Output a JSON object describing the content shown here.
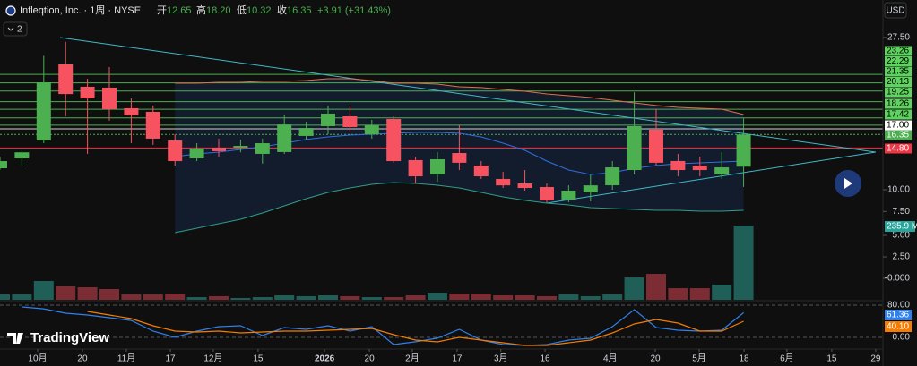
{
  "chart_data": {
    "type": "candlestick",
    "header": {
      "symbol": "Infleqtion, Inc. · 1周 · NYSE",
      "open_label": "开",
      "open": "12.65",
      "high_label": "高",
      "high": "18.20",
      "low_label": "低",
      "low": "10.32",
      "close_label": "收",
      "close": "16.35",
      "change": "+3.91 (+31.43%)"
    },
    "currency": "USD",
    "indicator_count": "2",
    "logo": "TradingView",
    "xlim": [
      0,
      40.37
    ],
    "xticks": [
      {
        "value": 1.72,
        "label": "10月"
      },
      {
        "value": 3.77,
        "label": "20"
      },
      {
        "value": 5.78,
        "label": "11月"
      },
      {
        "value": 7.79,
        "label": "17"
      },
      {
        "value": 9.75,
        "label": "12月"
      },
      {
        "value": 11.8,
        "label": "15"
      },
      {
        "value": 14.84,
        "label": "2026"
      },
      {
        "value": 16.89,
        "label": "20"
      },
      {
        "value": 18.85,
        "label": "2月"
      },
      {
        "value": 20.9,
        "label": "17"
      },
      {
        "value": 22.9,
        "label": "3月"
      },
      {
        "value": 24.92,
        "label": "16"
      },
      {
        "value": 27.9,
        "label": "4月"
      },
      {
        "value": 29.96,
        "label": "20"
      },
      {
        "value": 31.97,
        "label": "5月"
      },
      {
        "value": 34.02,
        "label": "18"
      },
      {
        "value": 35.98,
        "label": "6月"
      },
      {
        "value": 38.03,
        "label": "15"
      },
      {
        "value": 40.04,
        "label": "29"
      }
    ],
    "ylim": [
      -2.66,
      31.82
    ],
    "yticks": [
      {
        "value": 27.5,
        "label": "27.50"
      },
      {
        "value": 10,
        "label": "10.00"
      },
      {
        "value": 7.5,
        "label": "7.50"
      }
    ],
    "up_color": "#4caf50",
    "down_color": "#f7525f",
    "open": [
      12.47,
      13.6,
      15.66,
      24.41,
      21.84,
      21.74,
      19.37,
      18.96,
      15.66,
      13.6,
      14.84,
      14.84,
      14.12,
      14.33,
      16.18,
      17.31,
      18.44,
      16.38,
      18.13,
      13.4,
      11.75,
      14.22,
      12.78,
      11.24,
      10.72,
      10.31,
      8.86,
      9.7,
      10.51,
      12.26,
      16.9,
      13.3,
      12.78,
      11.75,
      12.65
    ],
    "high": [
      13.8,
      14.5,
      25.4,
      27.0,
      22.76,
      24.1,
      20.5,
      19.68,
      16.38,
      15.35,
      15.87,
      15.77,
      15.87,
      18.65,
      17.82,
      19.68,
      19.68,
      18.03,
      18.44,
      13.8,
      14.3,
      17.41,
      13.3,
      12.06,
      12.26,
      10.72,
      10.5,
      11.75,
      13.3,
      21.2,
      19.26,
      14.12,
      13.8,
      14.3,
      18.2
    ],
    "low": [
      12.3,
      12.8,
      15.35,
      18.44,
      14.12,
      17.93,
      15.35,
      15.15,
      12.78,
      13.29,
      13.81,
      14.3,
      13.0,
      14.12,
      15.77,
      16.38,
      16.6,
      15.87,
      13.1,
      10.7,
      10.9,
      12.26,
      11.24,
      10.2,
      9.9,
      8.46,
      8.56,
      8.66,
      10.0,
      11.75,
      12.78,
      11.54,
      11.54,
      11.24,
      10.32
    ],
    "close": [
      13.29,
      14.3,
      22.35,
      21.0,
      20.5,
      19.26,
      18.54,
      15.87,
      13.29,
      14.74,
      14.43,
      15.04,
      15.35,
      17.5,
      17.1,
      18.75,
      17.2,
      17.41,
      13.29,
      11.54,
      13.5,
      13.1,
      11.54,
      10.5,
      10.2,
      8.76,
      9.9,
      10.5,
      12.57,
      17.31,
      13.1,
      12.26,
      12.26,
      12.57,
      16.35
    ],
    "bands": [
      {
        "color": "#e0704a",
        "values": [
          null,
          null,
          null,
          null,
          null,
          null,
          null,
          null,
          22.25,
          22.25,
          22.35,
          22.35,
          22.46,
          22.46,
          22.56,
          22.76,
          22.76,
          22.56,
          22.25,
          22.25,
          22.15,
          21.84,
          21.74,
          21.53,
          21.32,
          21.01,
          20.81,
          20.6,
          20.29,
          19.98,
          19.68,
          19.47,
          19.37,
          19.26,
          18.65
        ]
      },
      {
        "color": "#2f6fe0",
        "values": [
          null,
          null,
          null,
          null,
          null,
          null,
          null,
          null,
          13.81,
          14.12,
          14.32,
          14.63,
          14.94,
          15.35,
          15.77,
          16.07,
          16.28,
          16.38,
          16.49,
          16.59,
          16.59,
          16.49,
          16.07,
          15.35,
          14.53,
          13.29,
          12.26,
          11.75,
          11.96,
          12.47,
          12.78,
          12.99,
          13.09,
          13.19,
          13.29
        ]
      },
      {
        "color": "#2e9e8a",
        "values": [
          null,
          null,
          null,
          null,
          null,
          null,
          null,
          null,
          5.06,
          5.57,
          6.09,
          6.6,
          7.32,
          8.15,
          8.97,
          9.69,
          10.21,
          10.62,
          10.82,
          10.72,
          10.51,
          10.21,
          9.69,
          9.18,
          8.77,
          8.46,
          8.25,
          7.94,
          7.84,
          7.74,
          7.63,
          7.63,
          7.53,
          7.53,
          7.63
        ]
      }
    ],
    "band_fill": "#131c2c",
    "trendlines": [
      {
        "color": "#3fb8c8",
        "x": [
          2.75,
          40.04
        ],
        "y": [
          27.5,
          14.32
        ]
      },
      {
        "color": "#3fb8c8",
        "x": [
          25,
          40.04
        ],
        "y": [
          8.46,
          14.32
        ]
      }
    ],
    "levels": [
      {
        "value": 23.26,
        "label": "23.26",
        "color": "#4caf50",
        "badge": "#5fd35f",
        "text_color": "#000000"
      },
      {
        "value": 22.29,
        "label": "22.29",
        "color": "#4caf50",
        "badge": "#5fd35f",
        "text_color": "#000000"
      },
      {
        "value": 21.35,
        "label": "21.35",
        "color": "#4caf50",
        "badge": "#5fd35f",
        "text_color": "#000000"
      },
      {
        "value": 20.13,
        "label": "20.13",
        "color": "#4caf50",
        "badge": "#5fd35f",
        "text_color": "#000000"
      },
      {
        "value": 19.25,
        "label": "19.25",
        "color": "#4caf50",
        "badge": "#5fd35f",
        "text_color": "#000000"
      },
      {
        "value": 18.26,
        "label": "18.26",
        "color": "#4caf50",
        "badge": "#5fd35f",
        "text_color": "#000000"
      },
      {
        "value": 17.42,
        "label": "17.42",
        "color": "#4caf50",
        "badge": "#5fd35f",
        "text_color": "#000000"
      },
      {
        "value": 17.0,
        "label": "17.00",
        "color": "#d0d0d0",
        "badge": "#ffffff",
        "text_color": "#000000"
      },
      {
        "value": 16.35,
        "label": "16.35",
        "color": "#4caf50",
        "badge": "#4caf50",
        "text_color": "#ffffff"
      },
      {
        "value": 14.8,
        "label": "14.80",
        "color": "#f23645",
        "badge": "#f23645",
        "text_color": "#ffffff"
      }
    ],
    "volume": {
      "ylim": [
        -2.5,
        7.5
      ],
      "yticks": [
        {
          "value": 5,
          "label": "5.00"
        },
        {
          "value": 2.5,
          "label": "2.50"
        },
        {
          "value": 0,
          "label": "-0.000"
        }
      ],
      "up_color": "#1f5f58",
      "down_color": "#7c2d33",
      "annotation": "235.9 M",
      "annotation_color": "#26a69a",
      "values": [
        -1.88,
        -1.88,
        -0.31,
        -0.94,
        -1.04,
        -1.25,
        -1.88,
        -1.88,
        -1.77,
        -2.19,
        -2.08,
        -2.29,
        -2.19,
        -1.98,
        -2.08,
        -1.98,
        -2.08,
        -2.19,
        -2.19,
        -1.98,
        -1.67,
        -1.77,
        -1.77,
        -1.98,
        -1.98,
        -2.08,
        -1.88,
        -2.08,
        -1.88,
        0.1,
        0.52,
        -1.15,
        -1.15,
        -0.73,
        6.15
      ]
    },
    "oscillator": {
      "ylim": [
        -28.9,
        88.9
      ],
      "yticks": [
        {
          "value": 80,
          "label": "80.00"
        },
        {
          "value": 0,
          "label": "0.00"
        }
      ],
      "series": [
        {
          "color": "#2f80ed",
          "last_label": "61.36",
          "values": [
            null,
            75.6,
            71,
            60,
            55.6,
            48.9,
            42,
            15.6,
            0,
            15.6,
            26.7,
            28.9,
            4.4,
            24.4,
            20,
            28.9,
            15.6,
            26.7,
            -17.8,
            -11,
            -2,
            20,
            -6.7,
            -17.8,
            -20,
            -17.8,
            -6.7,
            -2.2,
            26.7,
            68.9,
            24.4,
            17.8,
            15.6,
            17.8,
            61.36
          ]
        },
        {
          "color": "#f57c00",
          "last_label": "40.10",
          "values": [
            null,
            null,
            null,
            null,
            64.4,
            55.6,
            46.7,
            28.9,
            15.6,
            13.3,
            15.6,
            11.1,
            13.3,
            15.6,
            15.6,
            17.8,
            20,
            22.2,
            6.7,
            -6.7,
            -11.1,
            0,
            -6.7,
            -13.3,
            -20,
            -20,
            -13.3,
            -6.7,
            11.1,
            33.3,
            44.4,
            35.6,
            15.6,
            15.6,
            40.1
          ]
        }
      ]
    }
  }
}
